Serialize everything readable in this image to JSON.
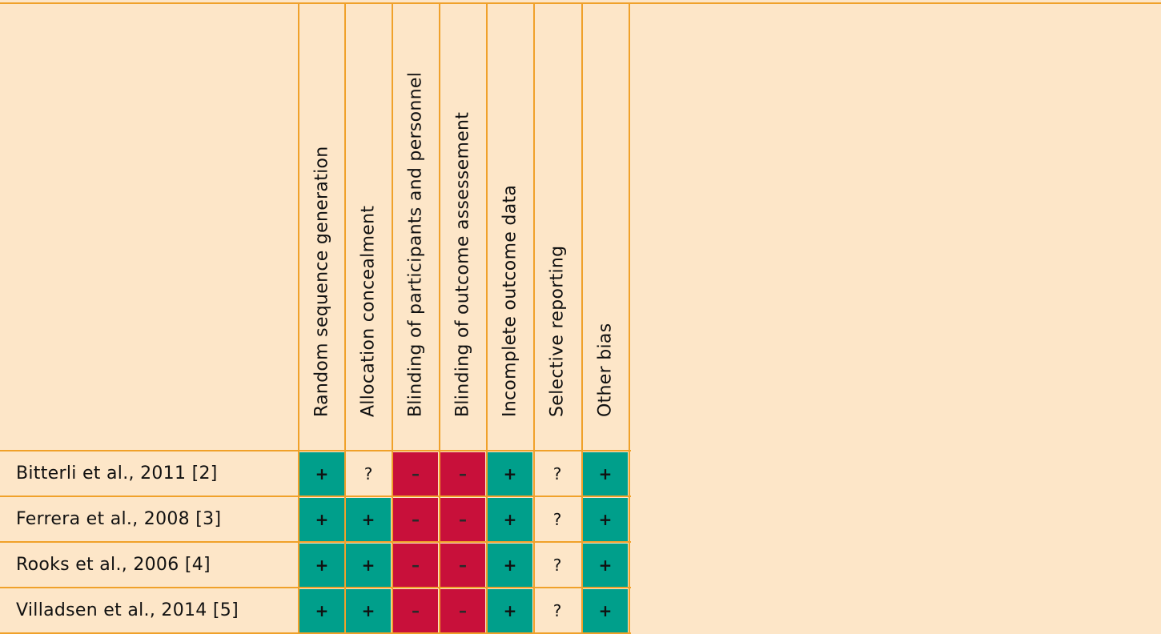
{
  "table": {
    "columns": [
      "Random sequence generation",
      "Allocation concealment",
      "Blinding of participants and personnel",
      "Blinding of outcome assessement",
      "Incomplete outcome data",
      "Selective reporting",
      "Other bias"
    ],
    "rows": [
      {
        "study": "Bitterli et al., 2011 [2]",
        "ratings": [
          "+",
          "?",
          "–",
          "–",
          "+",
          "?",
          "+"
        ]
      },
      {
        "study": "Ferrera et al., 2008 [3]",
        "ratings": [
          "+",
          "+",
          "–",
          "–",
          "+",
          "?",
          "+"
        ]
      },
      {
        "study": "Rooks et al., 2006 [4]",
        "ratings": [
          "+",
          "+",
          "–",
          "–",
          "+",
          "?",
          "+"
        ]
      },
      {
        "study": "Villadsen et al., 2014 [5]",
        "ratings": [
          "+",
          "+",
          "–",
          "–",
          "+",
          "?",
          "+"
        ]
      }
    ]
  },
  "legend_colors": {
    "low_risk": "#009f8b",
    "high_risk": "#c8103a",
    "unclear_risk": "#fde6c8",
    "border": "#f0a12a",
    "background": "#fde6c8"
  }
}
